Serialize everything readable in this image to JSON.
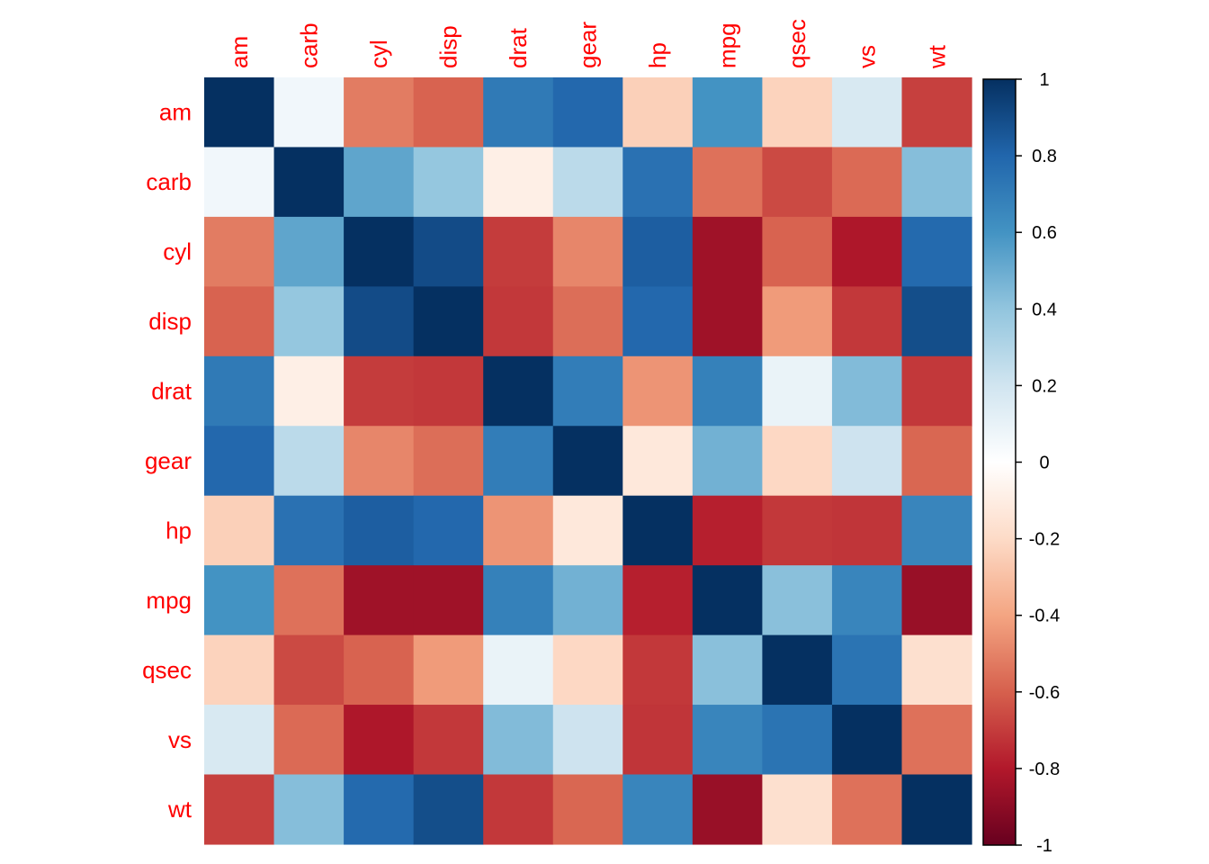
{
  "chart_data": {
    "type": "heatmap",
    "variables": [
      "am",
      "carb",
      "cyl",
      "disp",
      "drat",
      "gear",
      "hp",
      "mpg",
      "qsec",
      "vs",
      "wt"
    ],
    "matrix": [
      [
        1.0,
        0.06,
        -0.52,
        -0.59,
        0.71,
        0.79,
        -0.24,
        0.6,
        -0.23,
        0.17,
        -0.69
      ],
      [
        0.06,
        1.0,
        0.53,
        0.39,
        -0.09,
        0.27,
        0.75,
        -0.55,
        -0.66,
        -0.57,
        0.43
      ],
      [
        -0.52,
        0.53,
        1.0,
        0.9,
        -0.7,
        -0.49,
        0.83,
        -0.85,
        -0.59,
        -0.81,
        0.78
      ],
      [
        -0.59,
        0.39,
        0.9,
        1.0,
        -0.71,
        -0.56,
        0.79,
        -0.85,
        -0.43,
        -0.71,
        0.89
      ],
      [
        0.71,
        -0.09,
        -0.7,
        -0.71,
        1.0,
        0.7,
        -0.45,
        0.68,
        0.09,
        0.44,
        -0.71
      ],
      [
        0.79,
        0.27,
        -0.49,
        -0.56,
        0.7,
        1.0,
        -0.13,
        0.48,
        -0.21,
        0.21,
        -0.58
      ],
      [
        -0.24,
        0.75,
        0.83,
        0.79,
        -0.45,
        -0.13,
        1.0,
        -0.78,
        -0.71,
        -0.72,
        0.66
      ],
      [
        0.6,
        -0.55,
        -0.85,
        -0.85,
        0.68,
        0.48,
        -0.78,
        1.0,
        0.42,
        0.66,
        -0.87
      ],
      [
        -0.23,
        -0.66,
        -0.59,
        -0.43,
        0.09,
        -0.21,
        -0.71,
        0.42,
        1.0,
        0.74,
        -0.17
      ],
      [
        0.17,
        -0.57,
        -0.81,
        -0.71,
        0.44,
        0.21,
        -0.72,
        0.66,
        0.74,
        1.0,
        -0.55
      ],
      [
        -0.69,
        0.43,
        0.78,
        0.89,
        -0.71,
        -0.58,
        0.66,
        -0.87,
        -0.17,
        -0.55,
        1.0
      ]
    ],
    "colorbar": {
      "range": [
        -1,
        1
      ],
      "ticks": [
        "1",
        "0.8",
        "0.6",
        "0.4",
        "0.2",
        "0",
        "-0.2",
        "-0.4",
        "-0.6",
        "-0.8",
        "-1"
      ]
    },
    "colors": {
      "label": "#ff0000",
      "gradient_stops": [
        "#67001F",
        "#B2182B",
        "#D6604D",
        "#F4A582",
        "#FDDBC7",
        "#FFFFFF",
        "#D1E5F0",
        "#92C5DE",
        "#4393C3",
        "#2166AC",
        "#053061"
      ]
    },
    "title": "",
    "xlabel": "",
    "ylabel": "",
    "grid": false,
    "legend": "right colorbar"
  }
}
